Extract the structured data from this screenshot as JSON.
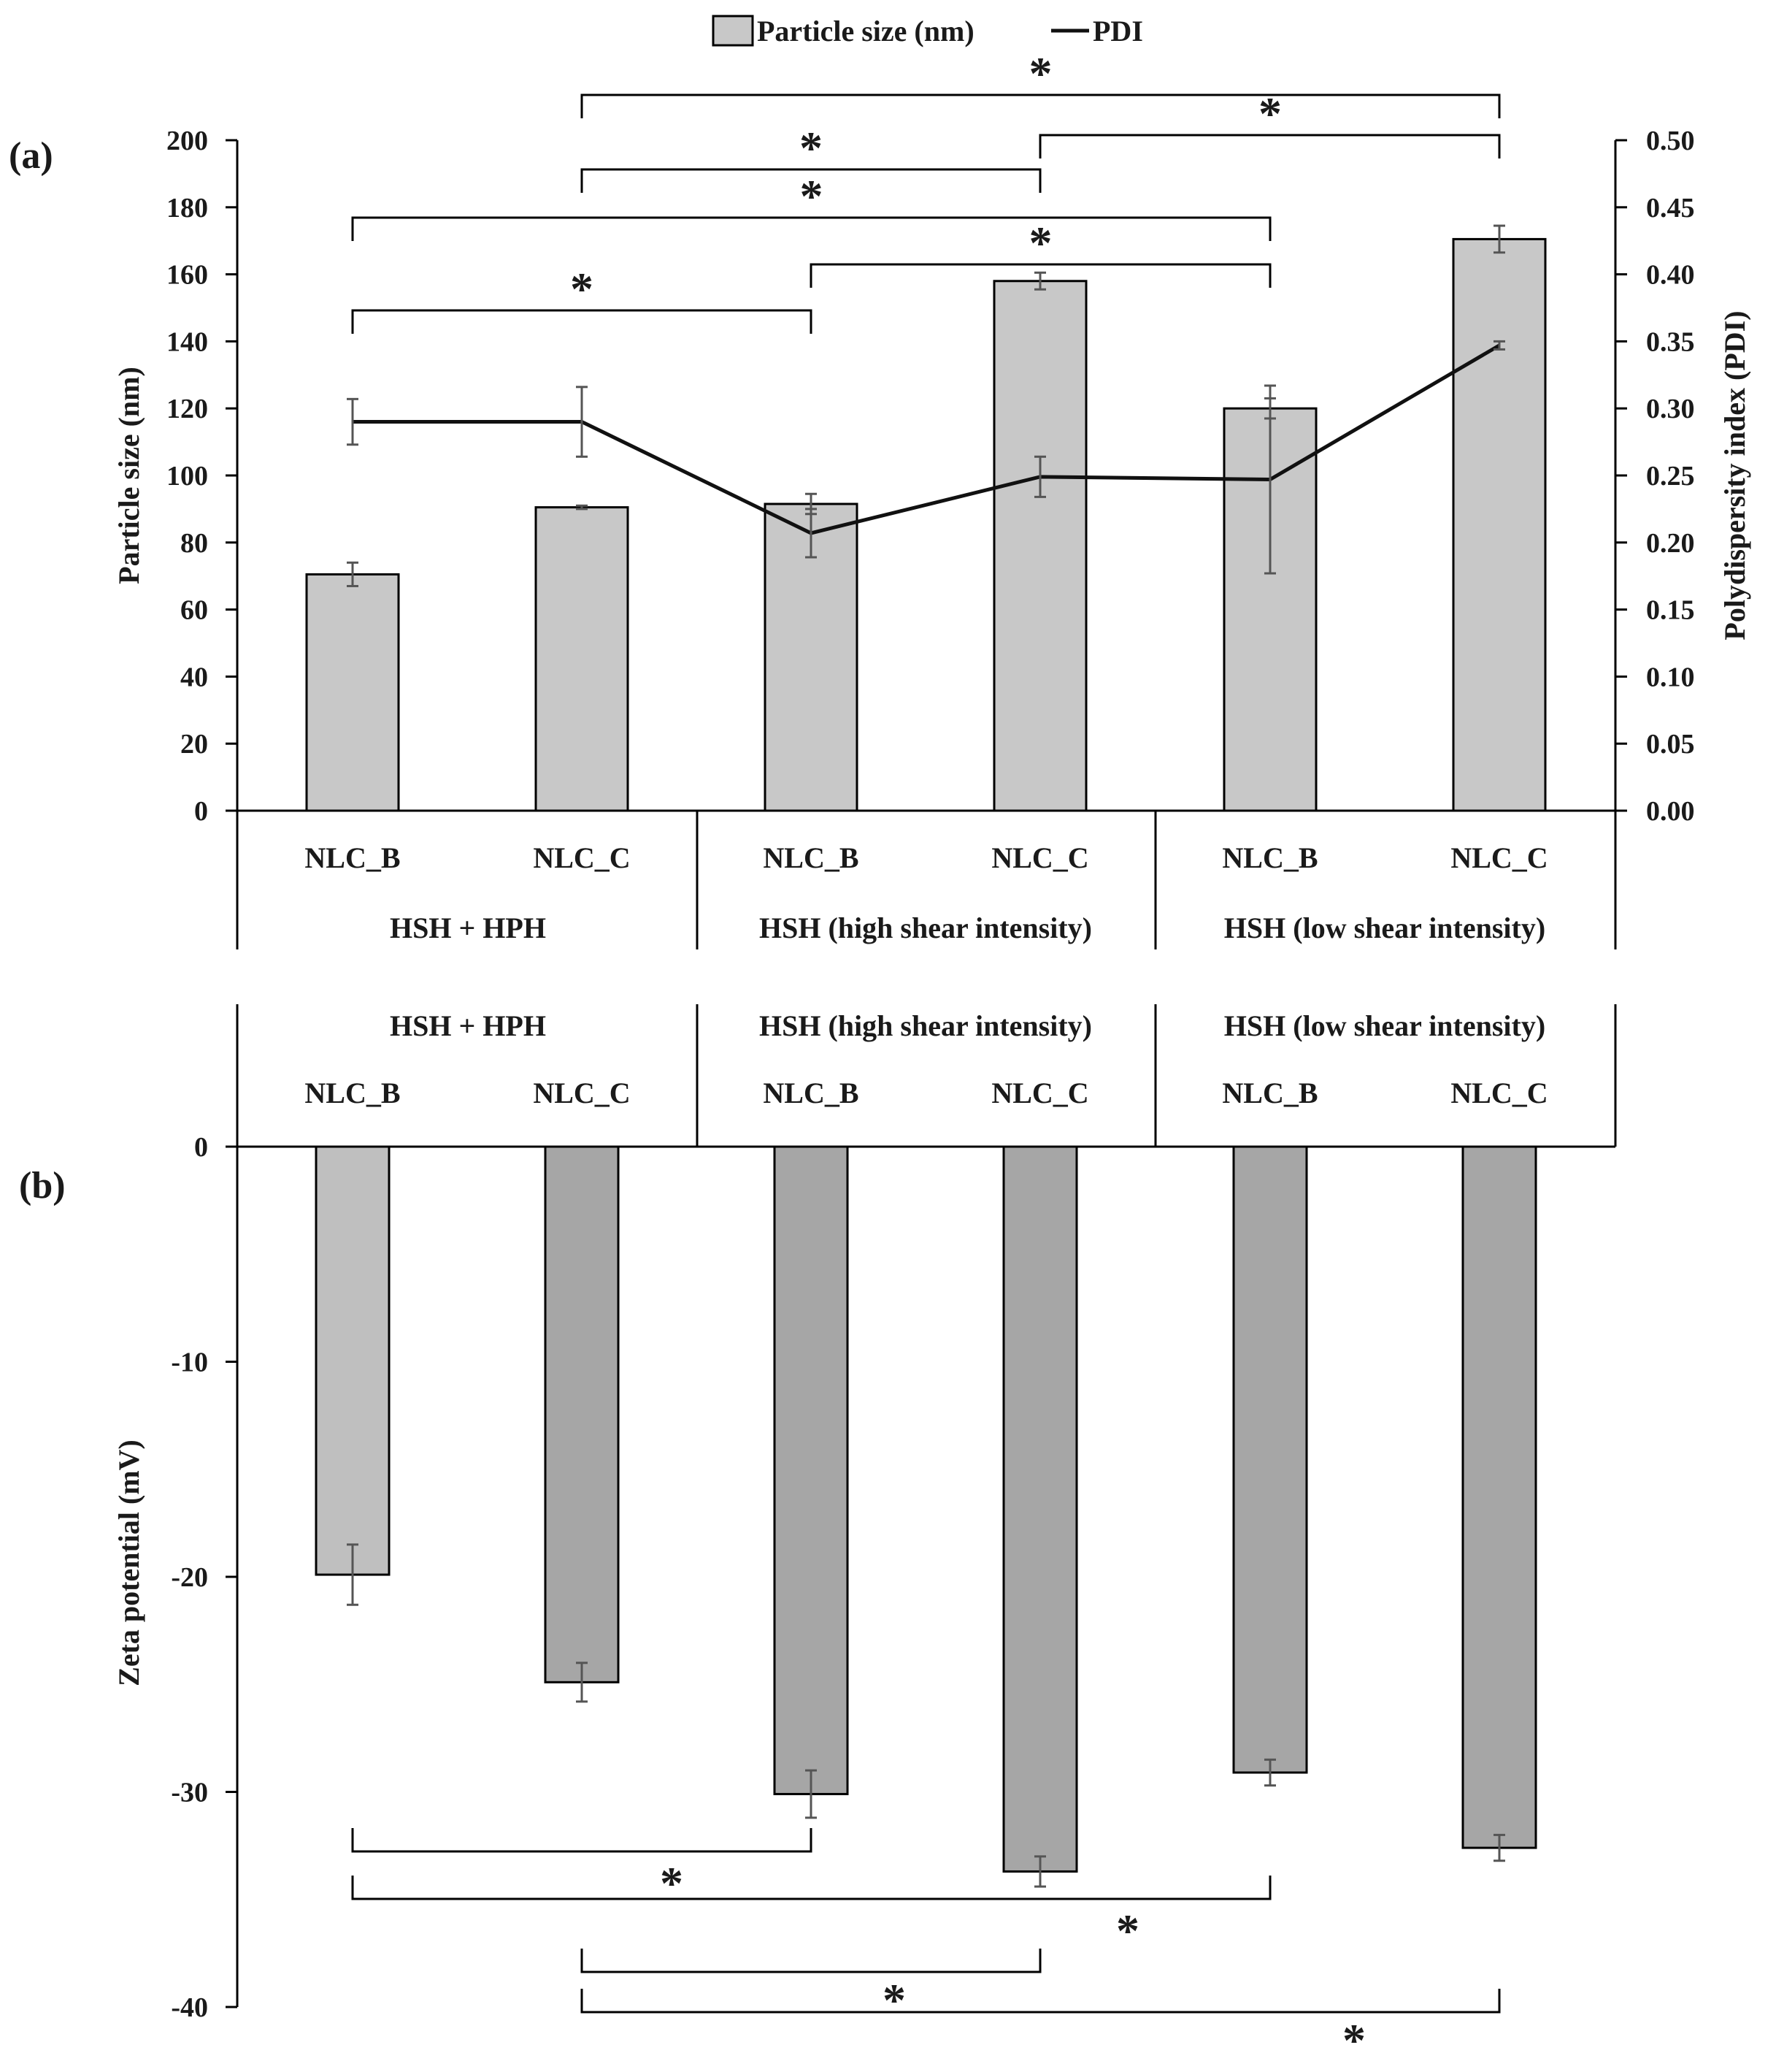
{
  "chart_data": [
    {
      "panel_label": "(a)",
      "type": "bar+line",
      "legend": [
        {
          "name": "Particle size (nm)",
          "kind": "bar"
        },
        {
          "name": "PDI",
          "kind": "line"
        }
      ],
      "ylabel": "Particle size (nm)",
      "y2label": "Polydispersity index (PDI)",
      "ylim": [
        0,
        200
      ],
      "y2lim": [
        0,
        0.5
      ],
      "yticks": [
        "0",
        "20",
        "40",
        "60",
        "80",
        "100",
        "120",
        "140",
        "160",
        "180",
        "200"
      ],
      "y2ticks": [
        "0.00",
        "0.05",
        "0.10",
        "0.15",
        "0.20",
        "0.25",
        "0.30",
        "0.35",
        "0.40",
        "0.45",
        "0.50"
      ],
      "categories": [
        "NLC_B",
        "NLC_C",
        "NLC_B",
        "NLC_C",
        "NLC_B",
        "NLC_C"
      ],
      "groups": [
        "HSH + HPH",
        "HSH (high shear intensity)",
        "HSH (low shear intensity)"
      ],
      "particle_size": [
        70.5,
        90.5,
        91.5,
        158,
        120,
        170.5
      ],
      "particle_size_err": [
        3.5,
        0.5,
        3,
        2.5,
        3,
        4
      ],
      "pdi": [
        0.29,
        0.29,
        0.207,
        0.249,
        0.247,
        0.347
      ],
      "pdi_err": [
        0.017,
        0.026,
        0.018,
        0.015,
        0.07,
        0.003
      ],
      "significance": [
        {
          "from": 0,
          "to": 2,
          "label": "*"
        },
        {
          "from": 0,
          "to": 4,
          "label": "*"
        },
        {
          "from": 2,
          "to": 4,
          "label": "*"
        },
        {
          "from": 1,
          "to": 3,
          "label": "*"
        },
        {
          "from": 3,
          "to": 5,
          "label": "*"
        },
        {
          "from": 1,
          "to": 5,
          "label": "*"
        }
      ]
    },
    {
      "panel_label": "(b)",
      "type": "bar",
      "ylabel": "Zeta potential (mV)",
      "ylim": [
        -40,
        0
      ],
      "yticks": [
        "0",
        "-10",
        "-20",
        "-30",
        "-40"
      ],
      "categories": [
        "NLC_B",
        "NLC_C",
        "NLC_B",
        "NLC_C",
        "NLC_B",
        "NLC_C"
      ],
      "groups": [
        "HSH + HPH",
        "HSH (high shear intensity)",
        "HSH (low shear intensity)"
      ],
      "values": [
        -19.9,
        -24.9,
        -30.1,
        -33.7,
        -29.1,
        -32.6
      ],
      "errors": [
        1.4,
        0.9,
        1.1,
        0.7,
        0.6,
        0.6
      ],
      "bar_colors": [
        "#bfbfbf",
        "#a6a6a6",
        "#a6a6a6",
        "#a6a6a6",
        "#a6a6a6",
        "#a6a6a6"
      ],
      "significance": [
        {
          "from": 0,
          "to": 2,
          "label": "*"
        },
        {
          "from": 0,
          "to": 4,
          "label": "*"
        },
        {
          "from": 1,
          "to": 3,
          "label": "*"
        },
        {
          "from": 1,
          "to": 5,
          "label": "*"
        }
      ]
    }
  ],
  "colors": {
    "bar_a": "#c8c8c8",
    "line": "#111111",
    "errbar": "#555555"
  }
}
